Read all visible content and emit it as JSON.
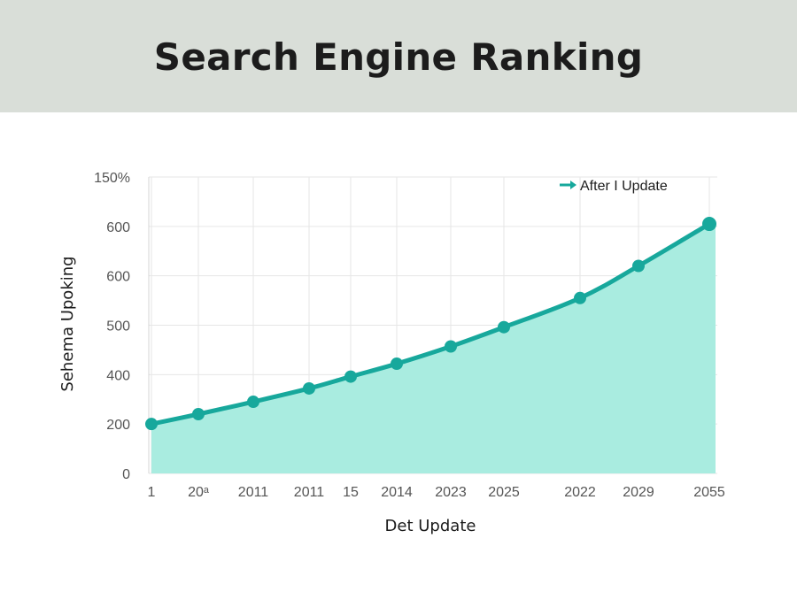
{
  "colors": {
    "header_bg": "#d9ded8",
    "line": "#17a89c",
    "fill": "#a9ece0",
    "grid": "#e6e6e6"
  },
  "chart_data": {
    "type": "area",
    "title": "Search Engine Ranking",
    "xlabel": "Det Update",
    "ylabel": "Sehema Upoking",
    "y_tick_labels": [
      "0",
      "200",
      "400",
      "500",
      "600",
      "600",
      "150%"
    ],
    "ylim": [
      0,
      6
    ],
    "legend": {
      "label": "After I Update",
      "position": "top-right"
    },
    "grid": true,
    "categories": [
      "1",
      "20ᵃ",
      "2011",
      "2011",
      "15",
      "2014",
      "2023",
      "2025",
      "2022",
      "2029",
      "2055"
    ],
    "x": [
      0,
      1,
      2,
      3,
      4,
      5,
      6,
      7,
      8,
      9,
      10
    ],
    "series": [
      {
        "name": "After I Update",
        "values": [
          1.0,
          1.2,
          1.45,
          1.72,
          1.96,
          2.22,
          2.57,
          2.96,
          3.55,
          4.2,
          5.05
        ]
      }
    ]
  }
}
